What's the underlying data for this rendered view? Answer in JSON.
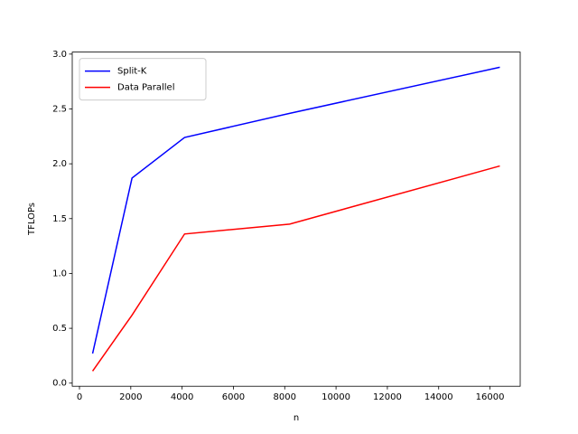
{
  "chart_data": {
    "type": "line",
    "xlabel": "n",
    "ylabel": "TFLOPs",
    "x": [
      512,
      2048,
      4096,
      8192,
      16384
    ],
    "series": [
      {
        "name": "Split-K",
        "color": "#0000ff",
        "values": [
          0.27,
          1.87,
          2.24,
          2.46,
          2.88
        ]
      },
      {
        "name": "Data Parallel",
        "color": "#ff0000",
        "values": [
          0.11,
          0.62,
          1.36,
          1.45,
          1.98
        ]
      }
    ],
    "xlim": [
      -281.6,
      17177.6
    ],
    "xticks": [
      0,
      2000,
      4000,
      6000,
      8000,
      10000,
      12000,
      14000,
      16000
    ],
    "ylim": [
      -0.0285,
      3.0185
    ],
    "yticks": [
      {
        "value": 0,
        "label": "0.0"
      },
      {
        "value": 0.5,
        "label": "0.5"
      },
      {
        "value": 1,
        "label": "1.0"
      },
      {
        "value": 1.5,
        "label": "1.5"
      },
      {
        "value": 2,
        "label": "2.0"
      },
      {
        "value": 2.5,
        "label": "2.5"
      },
      {
        "value": 3,
        "label": "3.0"
      }
    ],
    "legend": "upper left"
  }
}
